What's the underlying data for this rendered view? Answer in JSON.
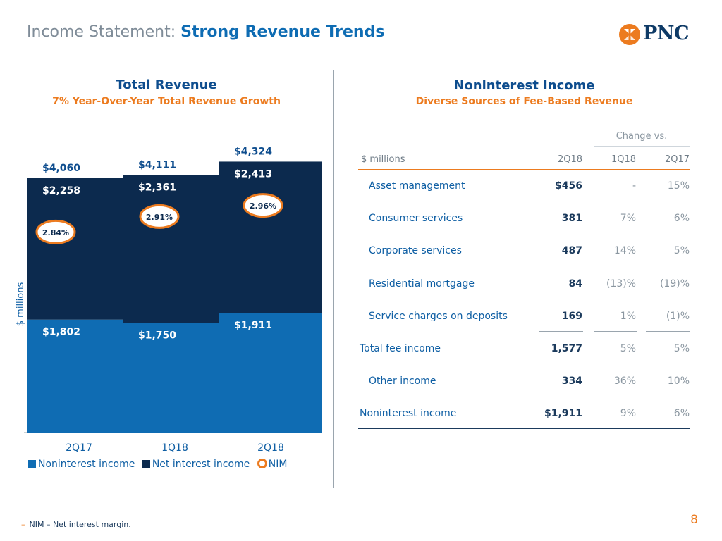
{
  "header": {
    "title_prefix": "Income Statement:",
    "title_highlight": "Strong Revenue Trends",
    "logo_text": "PNC"
  },
  "left_panel": {
    "title": "Total Revenue",
    "subtitle": "7% Year-Over-Year Total Revenue Growth"
  },
  "right_panel": {
    "title": "Noninterest Income",
    "subtitle": "Diverse Sources of Fee-Based Revenue"
  },
  "chart_data": {
    "type": "bar",
    "stacked": true,
    "categories": [
      "2Q17",
      "1Q18",
      "2Q18"
    ],
    "ylabel": "$ millions",
    "xlabel": "",
    "ylim": [
      0,
      4700
    ],
    "grid": false,
    "legend_position": "bottom",
    "series": [
      {
        "name": "Noninterest income",
        "values": [
          1802,
          1750,
          1911
        ],
        "labels": [
          "$1,802",
          "$1,750",
          "$1,911"
        ],
        "color": "#0f6cb3"
      },
      {
        "name": "Net interest income",
        "values": [
          2258,
          2361,
          2413
        ],
        "labels": [
          "$2,258",
          "$2,361",
          "$2,413"
        ],
        "color": "#0c2a4e"
      }
    ],
    "totals": [
      4060,
      4111,
      4324
    ],
    "total_labels": [
      "$4,060",
      "$4,111",
      "$4,324"
    ],
    "nim": {
      "name": "NIM",
      "values": [
        2.84,
        2.91,
        2.96
      ],
      "labels": [
        "2.84%",
        "2.91%",
        "2.96%"
      ],
      "color": "#ec7b1f"
    }
  },
  "legend": {
    "items": [
      {
        "label": "Noninterest income",
        "color": "#0f6cb3",
        "marker": "square"
      },
      {
        "label": "Net interest income",
        "color": "#0c2a4e",
        "marker": "square"
      },
      {
        "label": "NIM",
        "color": "#ec7b1f",
        "marker": "ring"
      }
    ]
  },
  "table": {
    "change_label": "Change vs.",
    "units_label": "$ millions",
    "columns": [
      "2Q18",
      "1Q18",
      "2Q17"
    ],
    "rows": [
      {
        "label": "Asset management",
        "indent": true,
        "value": "$456",
        "chg_1q18": "-",
        "chg_2q17": "15%"
      },
      {
        "label": "Consumer services",
        "indent": true,
        "value": "381",
        "chg_1q18": "7%",
        "chg_2q17": "6%"
      },
      {
        "label": "Corporate services",
        "indent": true,
        "value": "487",
        "chg_1q18": "14%",
        "chg_2q17": "5%"
      },
      {
        "label": "Residential mortgage",
        "indent": true,
        "value": "84",
        "chg_1q18": "(13)%",
        "chg_2q17": "(19)%"
      },
      {
        "label": "Service charges on deposits",
        "indent": true,
        "value": "169",
        "chg_1q18": "1%",
        "chg_2q17": "(1)%"
      },
      {
        "label": "Total fee income",
        "indent": false,
        "value": "1,577",
        "chg_1q18": "5%",
        "chg_2q17": "5%"
      },
      {
        "label": "Other income",
        "indent": true,
        "value": "334",
        "chg_1q18": "36%",
        "chg_2q17": "10%"
      },
      {
        "label": "Noninterest income",
        "indent": false,
        "value": "$1,911",
        "chg_1q18": "9%",
        "chg_2q17": "6%"
      }
    ]
  },
  "footnote": {
    "marker": "–",
    "text": "NIM – Net interest margin."
  },
  "page_number": "8",
  "colors": {
    "accent": "#ec7b1f",
    "navy": "#0c2a4e",
    "blue": "#0f6cb3",
    "title_gray": "#7f8c98"
  }
}
